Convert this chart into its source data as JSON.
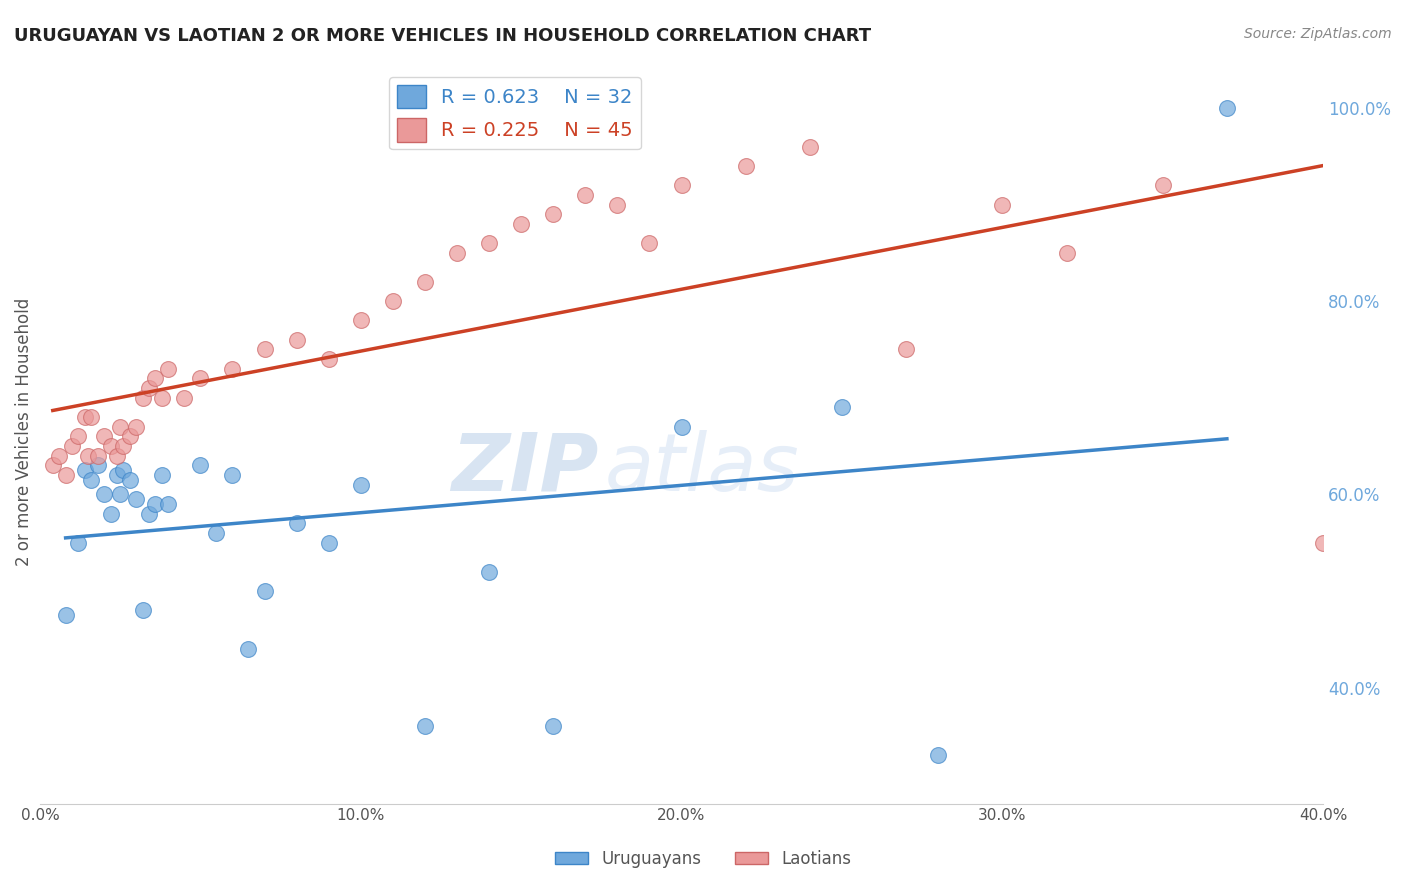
{
  "title": "URUGUAYAN VS LAOTIAN 2 OR MORE VEHICLES IN HOUSEHOLD CORRELATION CHART",
  "source": "Source: ZipAtlas.com",
  "ylabel": "2 or more Vehicles in Household",
  "xlim": [
    0.0,
    0.4
  ],
  "ylim": [
    0.28,
    1.05
  ],
  "yticks": [
    0.4,
    0.6,
    0.8,
    1.0
  ],
  "ytick_labels": [
    "40.0%",
    "60.0%",
    "80.0%",
    "100.0%"
  ],
  "xtick_positions": [
    0.0,
    0.05,
    0.1,
    0.15,
    0.2,
    0.25,
    0.3,
    0.35,
    0.4
  ],
  "xtick_labels": [
    "0.0%",
    "",
    "10.0%",
    "",
    "20.0%",
    "",
    "30.0%",
    "",
    "40.0%"
  ],
  "blue_color": "#6fa8dc",
  "pink_color": "#ea9999",
  "blue_line_color": "#3d85c8",
  "pink_line_color": "#cc4125",
  "right_axis_color": "#6fa8dc",
  "uruguayan_R": 0.623,
  "uruguayan_N": 32,
  "laotian_R": 0.225,
  "laotian_N": 45,
  "uruguayan_x": [
    0.008,
    0.012,
    0.014,
    0.016,
    0.018,
    0.02,
    0.022,
    0.024,
    0.025,
    0.026,
    0.028,
    0.03,
    0.032,
    0.034,
    0.036,
    0.038,
    0.04,
    0.05,
    0.055,
    0.06,
    0.065,
    0.07,
    0.08,
    0.09,
    0.1,
    0.12,
    0.14,
    0.16,
    0.2,
    0.25,
    0.28,
    0.37
  ],
  "uruguayan_y": [
    0.475,
    0.55,
    0.625,
    0.615,
    0.63,
    0.6,
    0.58,
    0.62,
    0.6,
    0.625,
    0.615,
    0.595,
    0.48,
    0.58,
    0.59,
    0.62,
    0.59,
    0.63,
    0.56,
    0.62,
    0.44,
    0.5,
    0.57,
    0.55,
    0.61,
    0.36,
    0.52,
    0.36,
    0.67,
    0.69,
    0.33,
    1.0
  ],
  "laotian_x": [
    0.004,
    0.006,
    0.008,
    0.01,
    0.012,
    0.014,
    0.015,
    0.016,
    0.018,
    0.02,
    0.022,
    0.024,
    0.025,
    0.026,
    0.028,
    0.03,
    0.032,
    0.034,
    0.036,
    0.038,
    0.04,
    0.045,
    0.05,
    0.06,
    0.07,
    0.08,
    0.1,
    0.11,
    0.12,
    0.13,
    0.14,
    0.15,
    0.18,
    0.2,
    0.22,
    0.24,
    0.3,
    0.32,
    0.35,
    0.16,
    0.09,
    0.17,
    0.4,
    0.27,
    0.19
  ],
  "laotian_y": [
    0.63,
    0.64,
    0.62,
    0.65,
    0.66,
    0.68,
    0.64,
    0.68,
    0.64,
    0.66,
    0.65,
    0.64,
    0.67,
    0.65,
    0.66,
    0.67,
    0.7,
    0.71,
    0.72,
    0.7,
    0.73,
    0.7,
    0.72,
    0.73,
    0.75,
    0.76,
    0.78,
    0.8,
    0.82,
    0.85,
    0.86,
    0.88,
    0.9,
    0.92,
    0.94,
    0.96,
    0.9,
    0.85,
    0.92,
    0.89,
    0.74,
    0.91,
    0.55,
    0.75,
    0.86
  ],
  "watermark_zip": "ZIP",
  "watermark_atlas": "atlas",
  "background_color": "#ffffff",
  "grid_color": "#cccccc"
}
